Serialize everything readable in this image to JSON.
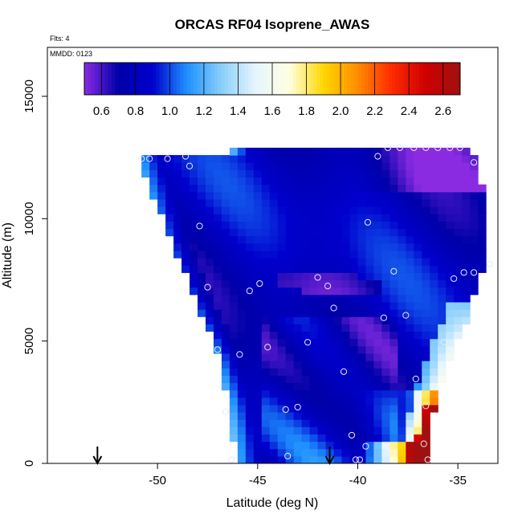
{
  "chart_data": {
    "type": "heatmap",
    "title": "ORCAS RF04 Isoprene_AWAS",
    "note_flights": "Flts: 4",
    "note_date": "MMDD: 0123",
    "xlabel": "Latitude (deg N)",
    "ylabel": "Altitude (m)",
    "xlim": [
      -55.5,
      -33.0
    ],
    "ylim": [
      0,
      17000
    ],
    "x_ticks": [
      -50,
      -45,
      -40,
      -35
    ],
    "x_tick_labels": [
      "-50",
      "-45",
      "-40",
      "-35"
    ],
    "y_ticks": [
      0,
      5000,
      10000,
      15000
    ],
    "y_tick_labels": [
      "0",
      "5000",
      "10000",
      "15000"
    ],
    "colorbar": {
      "range": [
        0.5,
        2.7
      ],
      "ticks": [
        0.6,
        0.8,
        1.0,
        1.2,
        1.4,
        1.6,
        1.8,
        2.0,
        2.2,
        2.4,
        2.6
      ],
      "tick_labels": [
        "0.6",
        "0.8",
        "1.0",
        "1.2",
        "1.4",
        "1.6",
        "1.8",
        "2.0",
        "2.2",
        "2.4",
        "2.6"
      ],
      "colors": [
        "#8a2be2",
        "#0000a8",
        "#0000cd",
        "#1e90ff",
        "#87cefa",
        "#e6f5ff",
        "#ffffe0",
        "#ffd700",
        "#ff8c00",
        "#ff2a00",
        "#cd0000",
        "#a01010"
      ]
    },
    "arrows_x": [
      -53.0,
      -41.4
    ],
    "samples": [
      {
        "x": -50.8,
        "y": 12450
      },
      {
        "x": -50.4,
        "y": 12450
      },
      {
        "x": -49.5,
        "y": 12450
      },
      {
        "x": -48.6,
        "y": 12550
      },
      {
        "x": -48.4,
        "y": 12150
      },
      {
        "x": -47.9,
        "y": 9700
      },
      {
        "x": -47.5,
        "y": 7200
      },
      {
        "x": -47.0,
        "y": 4650
      },
      {
        "x": -46.6,
        "y": 2100
      },
      {
        "x": -46.3,
        "y": 150
      },
      {
        "x": -45.9,
        "y": 4450
      },
      {
        "x": -45.4,
        "y": 7050
      },
      {
        "x": -44.9,
        "y": 7350
      },
      {
        "x": -44.5,
        "y": 4750
      },
      {
        "x": -43.6,
        "y": 2200
      },
      {
        "x": -43.5,
        "y": 300
      },
      {
        "x": -43.0,
        "y": 2300
      },
      {
        "x": -42.5,
        "y": 4950
      },
      {
        "x": -42.0,
        "y": 7600
      },
      {
        "x": -41.5,
        "y": 7250
      },
      {
        "x": -41.2,
        "y": 6350
      },
      {
        "x": -40.7,
        "y": 3750
      },
      {
        "x": -40.3,
        "y": 1150
      },
      {
        "x": -40.1,
        "y": 150
      },
      {
        "x": -39.9,
        "y": 150
      },
      {
        "x": -39.6,
        "y": 700
      },
      {
        "x": -39.5,
        "y": 9850
      },
      {
        "x": -39.0,
        "y": 12550
      },
      {
        "x": -38.7,
        "y": 5950
      },
      {
        "x": -38.5,
        "y": 12900
      },
      {
        "x": -38.2,
        "y": 7850
      },
      {
        "x": -37.9,
        "y": 12900
      },
      {
        "x": -37.6,
        "y": 6050
      },
      {
        "x": -37.2,
        "y": 12900
      },
      {
        "x": -37.1,
        "y": 3450
      },
      {
        "x": -36.6,
        "y": 12900
      },
      {
        "x": -36.6,
        "y": 2350
      },
      {
        "x": -36.7,
        "y": 800
      },
      {
        "x": -36.5,
        "y": 150
      },
      {
        "x": -36.0,
        "y": 12900
      },
      {
        "x": -35.7,
        "y": 4950
      },
      {
        "x": -35.4,
        "y": 12900
      },
      {
        "x": -35.2,
        "y": 7550
      },
      {
        "x": -34.9,
        "y": 12900
      },
      {
        "x": -34.7,
        "y": 7800
      },
      {
        "x": -34.2,
        "y": 12300
      },
      {
        "x": -34.2,
        "y": 7800
      },
      {
        "x": -33.4,
        "y": 8150
      }
    ]
  }
}
